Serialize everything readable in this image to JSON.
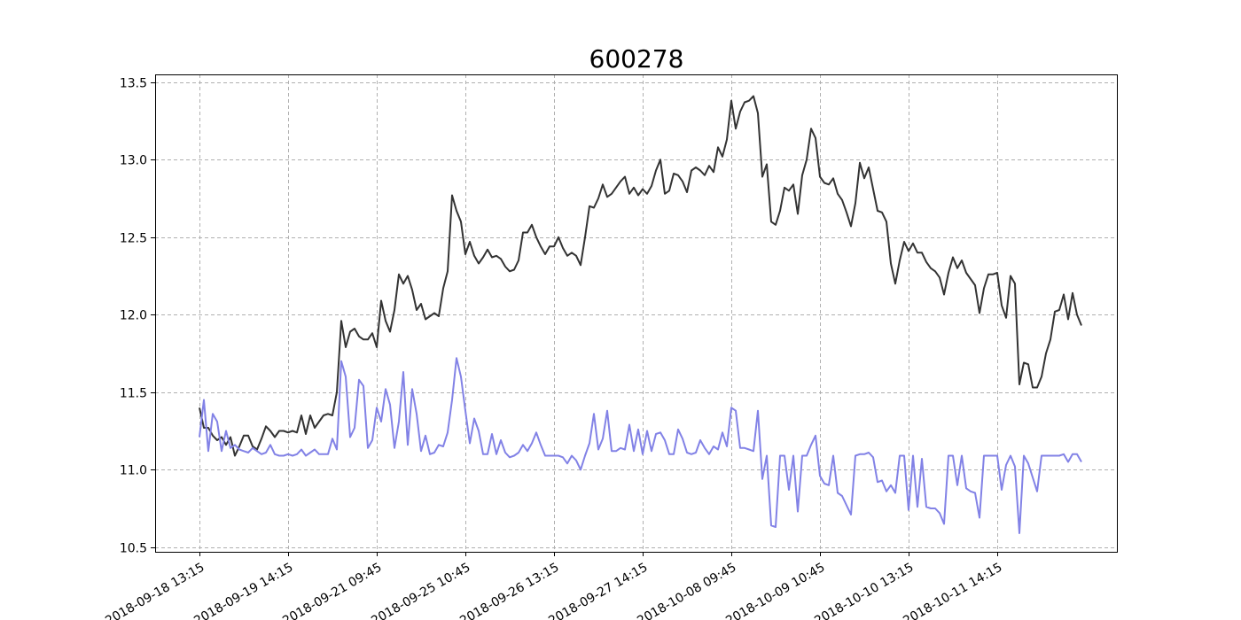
{
  "chart_data": {
    "type": "line",
    "title": "600278",
    "xlabel": "",
    "ylabel": "",
    "ylim": [
      10.47,
      13.55
    ],
    "y_ticks": [
      10.5,
      11.0,
      11.5,
      12.0,
      12.5,
      13.0,
      13.5
    ],
    "y_tick_labels": [
      "10.5",
      "11.0",
      "11.5",
      "12.0",
      "12.5",
      "13.0",
      "13.5"
    ],
    "x_tick_labels": [
      "2018-09-18 13:15",
      "2018-09-19 14:15",
      "2018-09-21 09:45",
      "2018-09-25 10:45",
      "2018-09-26 13:15",
      "2018-09-27 14:15",
      "2018-10-08 09:45",
      "2018-10-09 10:45",
      "2018-10-10 13:15",
      "2018-10-11 14:15"
    ],
    "x_tick_positions": [
      0,
      20,
      40,
      60,
      80,
      100,
      120,
      140,
      160,
      180
    ],
    "x_lim": [
      -10,
      207
    ],
    "grid": true,
    "series": [
      {
        "color": "#333333",
        "x": [
          0,
          1,
          2,
          3,
          4,
          5,
          6,
          7,
          8,
          9,
          10,
          11,
          12,
          13,
          14,
          15,
          16,
          17,
          18,
          19,
          20,
          21,
          22,
          23,
          24,
          25,
          26,
          27,
          28,
          29,
          30,
          31,
          32,
          33,
          34,
          35,
          36,
          37,
          38,
          39,
          40,
          41,
          42,
          43,
          44,
          45,
          46,
          47,
          48,
          49,
          50,
          51,
          52,
          53,
          54,
          55,
          56,
          57,
          58,
          59,
          60,
          61,
          62,
          63,
          64,
          65,
          66,
          67,
          68,
          69,
          70,
          71,
          72,
          73,
          74,
          75,
          76,
          77,
          78,
          79,
          80,
          81,
          82,
          83,
          84,
          85,
          86,
          87,
          88,
          89,
          90,
          91,
          92,
          93,
          94,
          95,
          96,
          97,
          98,
          99,
          100,
          101,
          102,
          103,
          104,
          105,
          106,
          107,
          108,
          109,
          110,
          111,
          112,
          113,
          114,
          115,
          116,
          117,
          118,
          119,
          120,
          121,
          122,
          123,
          124,
          125,
          126,
          127,
          128,
          129,
          130,
          131,
          132,
          133,
          134,
          135,
          136,
          137,
          138,
          139,
          140,
          141,
          142,
          143,
          144,
          145,
          146,
          147,
          148,
          149,
          150,
          151,
          152,
          153,
          154,
          155,
          156,
          157,
          158,
          159,
          160,
          161,
          162,
          163,
          164,
          165,
          166,
          167,
          168,
          169,
          170,
          171,
          172,
          173,
          174,
          175,
          176,
          177,
          178,
          179,
          180,
          181,
          182,
          183,
          184,
          185,
          186,
          187,
          188,
          189,
          190,
          191,
          192,
          193,
          194,
          195,
          196,
          197,
          198,
          199
        ],
        "values": [
          11.4,
          11.27,
          11.27,
          11.22,
          11.19,
          11.21,
          11.16,
          11.21,
          11.09,
          11.15,
          11.22,
          11.22,
          11.15,
          11.13,
          11.2,
          11.28,
          11.25,
          11.21,
          11.25,
          11.25,
          11.24,
          11.25,
          11.24,
          11.35,
          11.23,
          11.35,
          11.27,
          11.31,
          11.35,
          11.36,
          11.35,
          11.5,
          11.96,
          11.79,
          11.89,
          11.91,
          11.86,
          11.84,
          11.84,
          11.88,
          11.79,
          12.09,
          11.96,
          11.89,
          12.03,
          12.26,
          12.2,
          12.25,
          12.16,
          12.03,
          12.07,
          11.97,
          11.99,
          12.01,
          11.99,
          12.17,
          12.28,
          12.77,
          12.67,
          12.6,
          12.39,
          12.47,
          12.38,
          12.33,
          12.37,
          12.42,
          12.37,
          12.38,
          12.36,
          12.31,
          12.28,
          12.29,
          12.35,
          12.53,
          12.53,
          12.58,
          12.5,
          12.44,
          12.39,
          12.44,
          12.44,
          12.5,
          12.43,
          12.38,
          12.4,
          12.38,
          12.32,
          12.5,
          12.7,
          12.69,
          12.75,
          12.84,
          12.76,
          12.78,
          12.82,
          12.86,
          12.89,
          12.78,
          12.82,
          12.77,
          12.81,
          12.78,
          12.83,
          12.93,
          13.0,
          12.78,
          12.8,
          12.91,
          12.9,
          12.86,
          12.79,
          12.93,
          12.95,
          12.93,
          12.9,
          12.96,
          12.92,
          13.08,
          13.02,
          13.13,
          13.38,
          13.2,
          13.31,
          13.37,
          13.38,
          13.41,
          13.3,
          12.89,
          12.97,
          12.6,
          12.58,
          12.67,
          12.82,
          12.8,
          12.84,
          12.65,
          12.9,
          13.0,
          13.2,
          13.14,
          12.89,
          12.85,
          12.84,
          12.88,
          12.78,
          12.74,
          12.66,
          12.57,
          12.72,
          12.98,
          12.88,
          12.95,
          12.81,
          12.67,
          12.66,
          12.6,
          12.33,
          12.2,
          12.35,
          12.47,
          12.41,
          12.46,
          12.4,
          12.4,
          12.34,
          12.3,
          12.28,
          12.24,
          12.13,
          12.27,
          12.37,
          12.3,
          12.35,
          12.27,
          12.23,
          12.19,
          12.01,
          12.17,
          12.26,
          12.26,
          12.27,
          12.06,
          11.98,
          12.25,
          12.2,
          11.55,
          11.69,
          11.68,
          11.53,
          11.53,
          11.6,
          11.75,
          11.84,
          12.02,
          12.03,
          12.13,
          11.97,
          12.14,
          12.0,
          11.93
        ]
      },
      {
        "color": "#8282e6",
        "x": [
          0,
          1,
          2,
          3,
          4,
          5,
          6,
          7,
          8,
          9,
          10,
          11,
          12,
          13,
          14,
          15,
          16,
          17,
          18,
          19,
          20,
          21,
          22,
          23,
          24,
          25,
          26,
          27,
          28,
          29,
          30,
          31,
          32,
          33,
          34,
          35,
          36,
          37,
          38,
          39,
          40,
          41,
          42,
          43,
          44,
          45,
          46,
          47,
          48,
          49,
          50,
          51,
          52,
          53,
          54,
          55,
          56,
          57,
          58,
          59,
          60,
          61,
          62,
          63,
          64,
          65,
          66,
          67,
          68,
          69,
          70,
          71,
          72,
          73,
          74,
          75,
          76,
          77,
          78,
          79,
          80,
          81,
          82,
          83,
          84,
          85,
          86,
          87,
          88,
          89,
          90,
          91,
          92,
          93,
          94,
          95,
          96,
          97,
          98,
          99,
          100,
          101,
          102,
          103,
          104,
          105,
          106,
          107,
          108,
          109,
          110,
          111,
          112,
          113,
          114,
          115,
          116,
          117,
          118,
          119,
          120,
          121,
          122,
          123,
          124,
          125,
          126,
          127,
          128,
          129,
          130,
          131,
          132,
          133,
          134,
          135,
          136,
          137,
          138,
          139,
          140,
          141,
          142,
          143,
          144,
          145,
          146,
          147,
          148,
          149,
          150,
          151,
          152,
          153,
          154,
          155,
          156,
          157,
          158,
          159,
          160,
          161,
          162,
          163,
          164,
          165,
          166,
          167,
          168,
          169,
          170,
          171,
          172,
          173,
          174,
          175,
          176,
          177,
          178,
          179,
          180,
          181,
          182,
          183,
          184,
          185,
          186,
          187,
          188,
          189,
          190,
          191,
          192,
          193,
          194,
          195,
          196,
          197,
          198,
          199
        ],
        "values": [
          11.21,
          11.45,
          11.12,
          11.36,
          11.31,
          11.12,
          11.25,
          11.14,
          11.16,
          11.13,
          11.12,
          11.11,
          11.14,
          11.12,
          11.1,
          11.11,
          11.16,
          11.1,
          11.09,
          11.09,
          11.1,
          11.09,
          11.1,
          11.13,
          11.09,
          11.11,
          11.13,
          11.1,
          11.1,
          11.1,
          11.2,
          11.13,
          11.7,
          11.6,
          11.21,
          11.27,
          11.58,
          11.54,
          11.14,
          11.19,
          11.4,
          11.31,
          11.52,
          11.42,
          11.14,
          11.31,
          11.63,
          11.16,
          11.52,
          11.36,
          11.12,
          11.22,
          11.1,
          11.11,
          11.16,
          11.15,
          11.24,
          11.45,
          11.72,
          11.6,
          11.38,
          11.17,
          11.33,
          11.25,
          11.1,
          11.1,
          11.23,
          11.1,
          11.19,
          11.11,
          11.08,
          11.09,
          11.11,
          11.16,
          11.12,
          11.17,
          11.24,
          11.16,
          11.09,
          11.09,
          11.09,
          11.09,
          11.08,
          11.04,
          11.09,
          11.06,
          11.0,
          11.09,
          11.17,
          11.36,
          11.13,
          11.2,
          11.38,
          11.12,
          11.12,
          11.14,
          11.13,
          11.29,
          11.12,
          11.26,
          11.1,
          11.25,
          11.12,
          11.23,
          11.24,
          11.19,
          11.1,
          11.1,
          11.26,
          11.2,
          11.11,
          11.1,
          11.11,
          11.19,
          11.14,
          11.1,
          11.15,
          11.13,
          11.24,
          11.15,
          11.4,
          11.38,
          11.14,
          11.14,
          11.13,
          11.12,
          11.38,
          10.94,
          11.09,
          10.64,
          10.63,
          11.09,
          11.09,
          10.87,
          11.09,
          10.73,
          11.09,
          11.09,
          11.16,
          11.22,
          10.96,
          10.91,
          10.9,
          11.09,
          10.85,
          10.83,
          10.77,
          10.71,
          11.09,
          11.1,
          11.1,
          11.11,
          11.08,
          10.92,
          10.93,
          10.86,
          10.9,
          10.85,
          11.09,
          11.09,
          10.74,
          11.09,
          10.76,
          11.07,
          10.76,
          10.75,
          10.75,
          10.72,
          10.65,
          11.09,
          11.09,
          10.9,
          11.09,
          10.88,
          10.86,
          10.85,
          10.69,
          11.09,
          11.09,
          11.09,
          11.09,
          10.87,
          11.03,
          11.09,
          11.02,
          10.59,
          11.09,
          11.04,
          10.95,
          10.86,
          11.09,
          11.09,
          11.09,
          11.09,
          11.09,
          11.1,
          11.05,
          11.1,
          11.1,
          11.05
        ]
      }
    ]
  }
}
